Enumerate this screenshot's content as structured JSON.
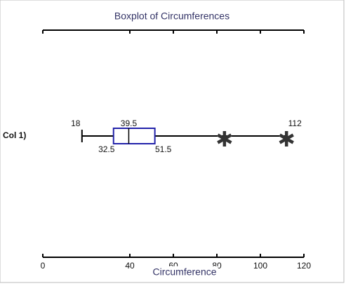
{
  "chart_data": {
    "type": "boxplot",
    "title": "Boxplot of Circumferences",
    "xlabel": "Circumference",
    "category": "Col 1)",
    "whisker_low": 18,
    "q1": 32.5,
    "median": 39.5,
    "q3": 51.5,
    "whisker_high": 112,
    "outliers": [
      83.5,
      112
    ],
    "value_labels": {
      "whisker_low": "18",
      "q1": "32.5",
      "median": "39.5",
      "q3": "51.5",
      "whisker_high": "112"
    },
    "box_color": "#2222aa",
    "xlim": [
      0,
      120
    ],
    "xticks": [
      0,
      40,
      60,
      80,
      100,
      120
    ]
  }
}
